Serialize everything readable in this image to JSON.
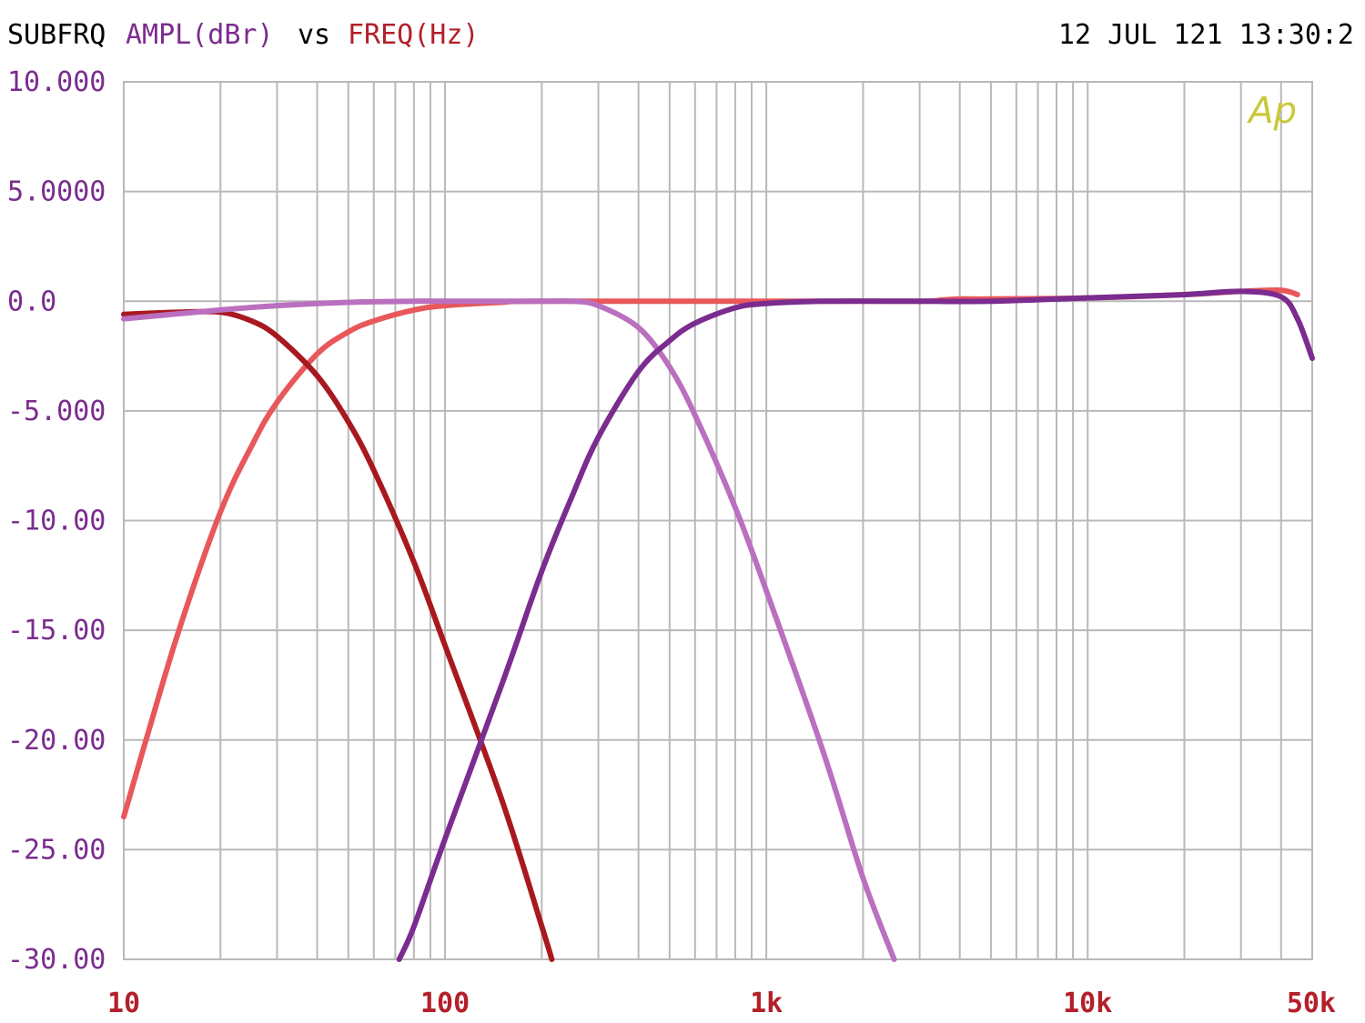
{
  "header": {
    "prefix": "SUBFRQ",
    "y_quantity": "AMPL(dBr)",
    "vs": "vs",
    "x_quantity": "FREQ(Hz)",
    "timestamp": "12 JUL 121 13:30:2"
  },
  "logo": "Ap",
  "colors": {
    "purple_text": "#7b2c8f",
    "red_text": "#b3202a",
    "grid": "#b9b9b9"
  },
  "chart_data": {
    "type": "line",
    "title": "",
    "xlabel": "FREQ(Hz)",
    "ylabel": "AMPL(dBr)",
    "x_scale": "log",
    "xlim": [
      10,
      50000
    ],
    "ylim": [
      -30,
      10
    ],
    "grid": true,
    "x_tick_labels": [
      "10",
      "100",
      "1k",
      "10k",
      "50k"
    ],
    "x_tick_values": [
      10,
      100,
      1000,
      10000,
      50000
    ],
    "y_tick_labels": [
      "10.000",
      "5.0000",
      "0.0",
      "-5.000",
      "-10.00",
      "-15.00",
      "-20.00",
      "-25.00",
      "-30.00"
    ],
    "y_tick_values": [
      10,
      5,
      0,
      -5,
      -10,
      -15,
      -20,
      -25,
      -30
    ],
    "series": [
      {
        "color": "#e8575a",
        "x": [
          10,
          12,
          15,
          20,
          25,
          30,
          40,
          50,
          60,
          80,
          100,
          150,
          200,
          1300,
          3000,
          3500,
          4000,
          5000,
          10000,
          20000,
          30000,
          40000,
          45000
        ],
        "y": [
          -23.5,
          -19.5,
          -14.8,
          -9.6,
          -6.6,
          -4.6,
          -2.4,
          -1.4,
          -0.9,
          -0.4,
          -0.2,
          -0.05,
          0,
          0,
          0,
          0.05,
          0.1,
          0.1,
          0.15,
          0.3,
          0.45,
          0.5,
          0.3
        ]
      },
      {
        "color": "#a8191f",
        "x": [
          10,
          15,
          20,
          25,
          30,
          40,
          50,
          60,
          80,
          100,
          150,
          200,
          215
        ],
        "y": [
          -0.6,
          -0.5,
          -0.5,
          -0.9,
          -1.6,
          -3.4,
          -5.5,
          -7.7,
          -11.9,
          -15.7,
          -22.7,
          -28.5,
          -30
        ]
      },
      {
        "color": "#ba6fbf",
        "x": [
          10,
          20,
          30,
          50,
          80,
          100,
          150,
          200,
          250,
          300,
          400,
          500,
          600,
          800,
          1000,
          1500,
          2000,
          2500
        ],
        "y": [
          -0.8,
          -0.4,
          -0.2,
          -0.05,
          0,
          0,
          0,
          0,
          0,
          -0.2,
          -1.2,
          -3.0,
          -5.2,
          -9.4,
          -13.2,
          -20.5,
          -26.3,
          -30
        ]
      },
      {
        "color": "#7b2c8f",
        "x": [
          72,
          80,
          100,
          150,
          200,
          250,
          300,
          400,
          500,
          600,
          800,
          1000,
          1500,
          3000,
          5000,
          10000,
          20000,
          30000,
          40000,
          45000,
          50000
        ],
        "y": [
          -30,
          -28.5,
          -24.5,
          -17.5,
          -12.3,
          -8.8,
          -6.2,
          -3.2,
          -1.8,
          -1.0,
          -0.3,
          -0.1,
          0,
          0,
          0,
          0.15,
          0.3,
          0.45,
          0.2,
          -0.8,
          -2.6
        ]
      }
    ]
  }
}
